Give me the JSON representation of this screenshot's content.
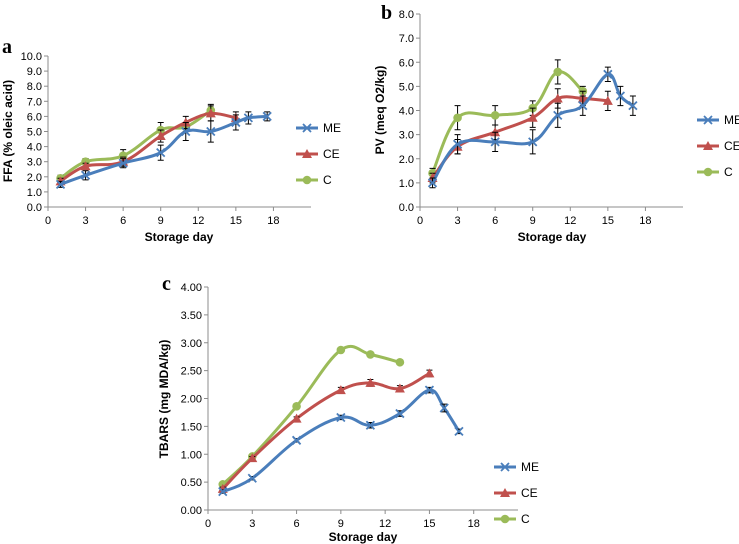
{
  "figure": {
    "colors": {
      "ME": "#4a7ebb",
      "CE": "#c0504d",
      "C": "#9bbb59"
    }
  },
  "chart_data": [
    {
      "type": "line",
      "panel_label": "a",
      "title": "",
      "xlabel": "Storage day",
      "ylabel": "FFA (% oleic acid)",
      "xlim": [
        0,
        21
      ],
      "ylim": [
        0,
        10
      ],
      "xticks": [
        "0",
        "3",
        "6",
        "9",
        "12",
        "15",
        "18"
      ],
      "yticks": [
        "0.0",
        "1.0",
        "2.0",
        "3.0",
        "4.0",
        "5.0",
        "6.0",
        "7.0",
        "8.0",
        "9.0",
        "10.0"
      ],
      "legend": [
        "ME",
        "CE",
        "C"
      ],
      "series": [
        {
          "name": "ME",
          "marker": "x",
          "x": [
            1,
            3,
            6,
            9,
            11,
            13,
            15,
            16,
            17.5
          ],
          "y": [
            1.5,
            2.1,
            2.9,
            3.6,
            5.0,
            5.0,
            5.6,
            5.9,
            6.0
          ],
          "err": [
            0.2,
            0.3,
            0.3,
            0.5,
            0.6,
            0.7,
            0.5,
            0.4,
            0.3
          ]
        },
        {
          "name": "CE",
          "marker": "triangle",
          "x": [
            1,
            3,
            6,
            9,
            11,
            13,
            15
          ],
          "y": [
            1.7,
            2.7,
            3.0,
            4.7,
            5.6,
            6.2,
            5.9
          ],
          "err": [
            0.2,
            0.2,
            0.3,
            0.4,
            0.4,
            0.5,
            0.4
          ]
        },
        {
          "name": "C",
          "marker": "circle",
          "x": [
            1,
            3,
            6,
            9,
            11,
            13
          ],
          "y": [
            1.9,
            3.0,
            3.4,
            5.1,
            5.3,
            6.4
          ],
          "err": [
            0.2,
            0.2,
            0.4,
            0.5,
            0.3,
            0.4
          ]
        }
      ]
    },
    {
      "type": "line",
      "panel_label": "b",
      "title": "",
      "xlabel": "Storage day",
      "ylabel": "PV (meq O2/kg)",
      "xlim": [
        0,
        21
      ],
      "ylim": [
        0,
        8
      ],
      "xticks": [
        "0",
        "3",
        "6",
        "9",
        "12",
        "15",
        "18"
      ],
      "yticks": [
        "0.0",
        "1.0",
        "2.0",
        "3.0",
        "4.0",
        "5.0",
        "6.0",
        "7.0",
        "8.0"
      ],
      "legend": [
        "ME",
        "CE",
        "C"
      ],
      "series": [
        {
          "name": "ME",
          "marker": "x",
          "x": [
            1,
            3,
            6,
            9,
            11,
            13,
            15,
            16,
            17
          ],
          "y": [
            1.0,
            2.6,
            2.7,
            2.7,
            3.8,
            4.2,
            5.5,
            4.6,
            4.2
          ],
          "err": [
            0.2,
            0.4,
            0.4,
            0.5,
            0.5,
            0.4,
            0.3,
            0.4,
            0.4
          ]
        },
        {
          "name": "CE",
          "marker": "triangle",
          "x": [
            1,
            3,
            6,
            9,
            11,
            13,
            15
          ],
          "y": [
            1.2,
            2.5,
            3.1,
            3.7,
            4.5,
            4.5,
            4.4
          ],
          "err": [
            0.2,
            0.3,
            0.3,
            0.4,
            0.4,
            0.3,
            0.4
          ]
        },
        {
          "name": "C",
          "marker": "circle",
          "x": [
            1,
            3,
            6,
            9,
            11,
            13
          ],
          "y": [
            1.4,
            3.7,
            3.8,
            4.1,
            5.6,
            4.8
          ],
          "err": [
            0.2,
            0.5,
            0.4,
            0.3,
            0.5,
            0.2
          ]
        }
      ]
    },
    {
      "type": "line",
      "panel_label": "c",
      "title": "",
      "xlabel": "Storage day",
      "ylabel": "TBARS (mg MDA/kg)",
      "xlim": [
        0,
        21
      ],
      "ylim": [
        0,
        4
      ],
      "xticks": [
        "0",
        "3",
        "6",
        "9",
        "12",
        "15",
        "18"
      ],
      "yticks": [
        "0.00",
        "0.50",
        "1.00",
        "1.50",
        "2.00",
        "2.50",
        "3.00",
        "3.50",
        "4.00"
      ],
      "legend": [
        "ME",
        "CE",
        "C"
      ],
      "series": [
        {
          "name": "ME",
          "marker": "x",
          "x": [
            1,
            3,
            6,
            9,
            11,
            13,
            15,
            16,
            17
          ],
          "y": [
            0.33,
            0.57,
            1.25,
            1.66,
            1.52,
            1.73,
            2.15,
            1.83,
            1.41
          ],
          "err": [
            0.03,
            0.03,
            0.03,
            0.04,
            0.05,
            0.05,
            0.05,
            0.07,
            0.04
          ]
        },
        {
          "name": "CE",
          "marker": "triangle",
          "x": [
            1,
            3,
            6,
            9,
            11,
            13,
            15
          ],
          "y": [
            0.38,
            0.93,
            1.64,
            2.15,
            2.28,
            2.18,
            2.45
          ],
          "err": [
            0.03,
            0.03,
            0.03,
            0.05,
            0.06,
            0.05,
            0.06
          ]
        },
        {
          "name": "C",
          "marker": "circle",
          "x": [
            1,
            3,
            6,
            9,
            11,
            13
          ],
          "y": [
            0.46,
            0.96,
            1.86,
            2.87,
            2.79,
            2.65
          ],
          "err": [
            0.02,
            0.02,
            0.02,
            0.02,
            0.02,
            0.02
          ]
        }
      ]
    }
  ]
}
